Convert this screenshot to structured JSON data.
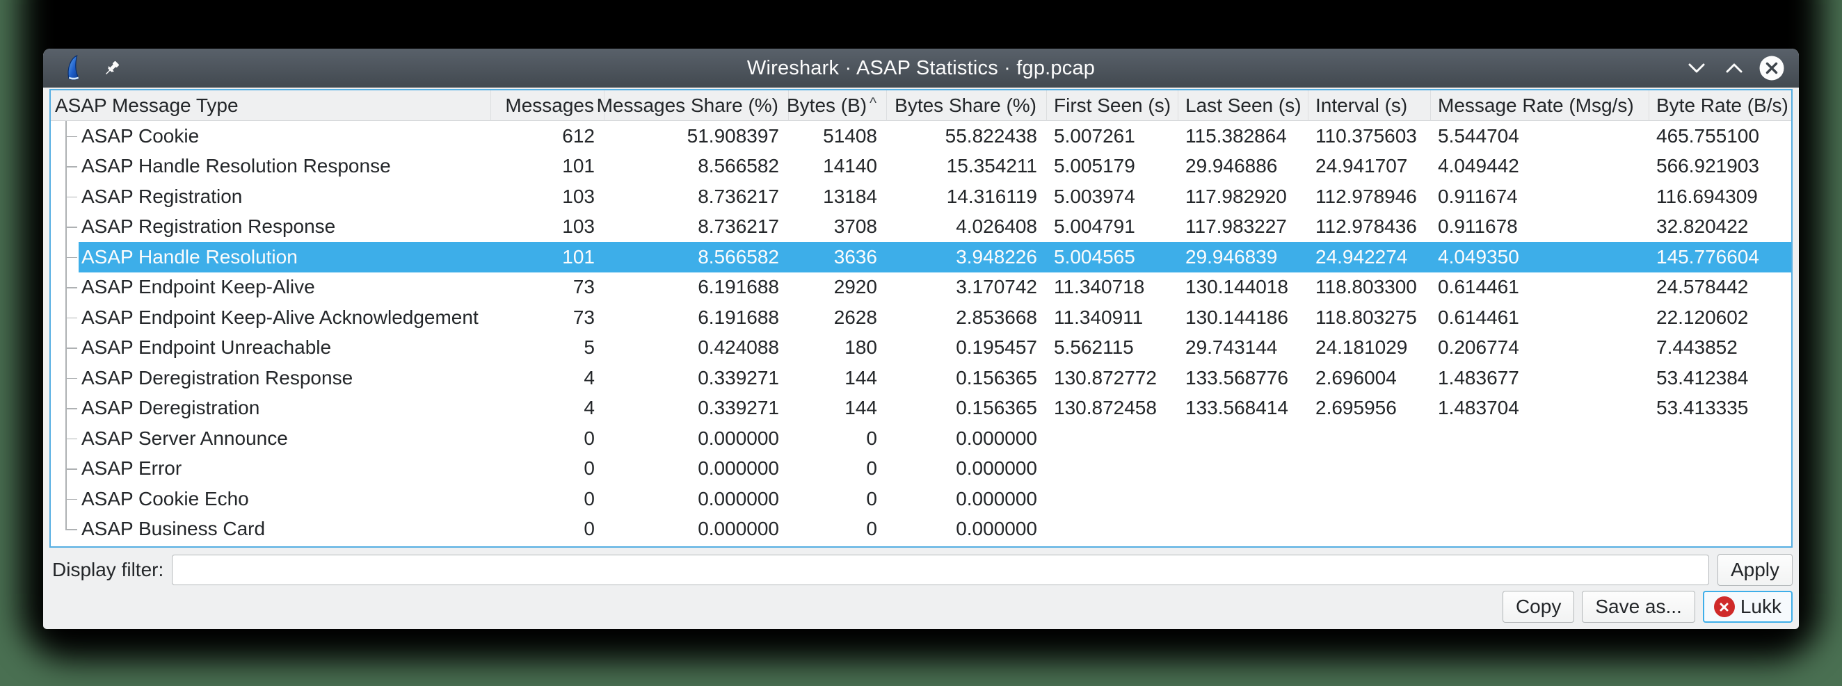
{
  "window": {
    "title": "Wireshark · ASAP Statistics · fgp.pcap",
    "controls": {
      "shade": "chevron-down",
      "maximize": "chevron-up",
      "close": "close-x"
    }
  },
  "table": {
    "columns": [
      {
        "label": "ASAP Message Type",
        "align": "left",
        "sorted": ""
      },
      {
        "label": "Messages",
        "align": "right",
        "sorted": ""
      },
      {
        "label": "Messages Share (%)",
        "align": "right",
        "sorted": ""
      },
      {
        "label": "Bytes (B)",
        "align": "right",
        "sorted": "asc"
      },
      {
        "label": "Bytes Share (%)",
        "align": "right",
        "sorted": ""
      },
      {
        "label": "First Seen (s)",
        "align": "left",
        "sorted": ""
      },
      {
        "label": "Last Seen (s)",
        "align": "left",
        "sorted": ""
      },
      {
        "label": "Interval (s)",
        "align": "left",
        "sorted": ""
      },
      {
        "label": "Message Rate (Msg/s)",
        "align": "left",
        "sorted": ""
      },
      {
        "label": "Byte Rate (B/s)",
        "align": "left",
        "sorted": ""
      }
    ],
    "sort_indicator": "^",
    "rows": [
      {
        "cells": [
          "ASAP Cookie",
          "612",
          "51.908397",
          "51408",
          "55.822438",
          "5.007261",
          "115.382864",
          "110.375603",
          "5.544704",
          "465.755100"
        ],
        "selected": false
      },
      {
        "cells": [
          "ASAP Handle Resolution Response",
          "101",
          "8.566582",
          "14140",
          "15.354211",
          "5.005179",
          "29.946886",
          "24.941707",
          "4.049442",
          "566.921903"
        ],
        "selected": false
      },
      {
        "cells": [
          "ASAP Registration",
          "103",
          "8.736217",
          "13184",
          "14.316119",
          "5.003974",
          "117.982920",
          "112.978946",
          "0.911674",
          "116.694309"
        ],
        "selected": false
      },
      {
        "cells": [
          "ASAP Registration Response",
          "103",
          "8.736217",
          "3708",
          "4.026408",
          "5.004791",
          "117.983227",
          "112.978436",
          "0.911678",
          "32.820422"
        ],
        "selected": false
      },
      {
        "cells": [
          "ASAP Handle Resolution",
          "101",
          "8.566582",
          "3636",
          "3.948226",
          "5.004565",
          "29.946839",
          "24.942274",
          "4.049350",
          "145.776604"
        ],
        "selected": true
      },
      {
        "cells": [
          "ASAP Endpoint Keep-Alive",
          "73",
          "6.191688",
          "2920",
          "3.170742",
          "11.340718",
          "130.144018",
          "118.803300",
          "0.614461",
          "24.578442"
        ],
        "selected": false
      },
      {
        "cells": [
          "ASAP Endpoint Keep-Alive Acknowledgement",
          "73",
          "6.191688",
          "2628",
          "2.853668",
          "11.340911",
          "130.144186",
          "118.803275",
          "0.614461",
          "22.120602"
        ],
        "selected": false
      },
      {
        "cells": [
          "ASAP Endpoint Unreachable",
          "5",
          "0.424088",
          "180",
          "0.195457",
          "5.562115",
          "29.743144",
          "24.181029",
          "0.206774",
          "7.443852"
        ],
        "selected": false
      },
      {
        "cells": [
          "ASAP Deregistration Response",
          "4",
          "0.339271",
          "144",
          "0.156365",
          "130.872772",
          "133.568776",
          "2.696004",
          "1.483677",
          "53.412384"
        ],
        "selected": false
      },
      {
        "cells": [
          "ASAP Deregistration",
          "4",
          "0.339271",
          "144",
          "0.156365",
          "130.872458",
          "133.568414",
          "2.695956",
          "1.483704",
          "53.413335"
        ],
        "selected": false
      },
      {
        "cells": [
          "ASAP Server Announce",
          "0",
          "0.000000",
          "0",
          "0.000000",
          "",
          "",
          "",
          "",
          ""
        ],
        "selected": false
      },
      {
        "cells": [
          "ASAP Error",
          "0",
          "0.000000",
          "0",
          "0.000000",
          "",
          "",
          "",
          "",
          ""
        ],
        "selected": false
      },
      {
        "cells": [
          "ASAP Cookie Echo",
          "0",
          "0.000000",
          "0",
          "0.000000",
          "",
          "",
          "",
          "",
          ""
        ],
        "selected": false
      },
      {
        "cells": [
          "ASAP Business Card",
          "0",
          "0.000000",
          "0",
          "0.000000",
          "",
          "",
          "",
          "",
          ""
        ],
        "selected": false
      }
    ]
  },
  "filter": {
    "label": "Display filter:",
    "value": "",
    "apply_label": "Apply"
  },
  "actions": {
    "copy_label": "Copy",
    "save_as_label": "Save as...",
    "close_label": "Lukk"
  },
  "colors": {
    "selection": "#3daee9",
    "table_focus_border": "#55aee2",
    "titlebar_top": "#59616a",
    "titlebar_bottom": "#424950",
    "dialog_background": "#eff0f1",
    "close_icon_red": "#cf2a2a"
  }
}
